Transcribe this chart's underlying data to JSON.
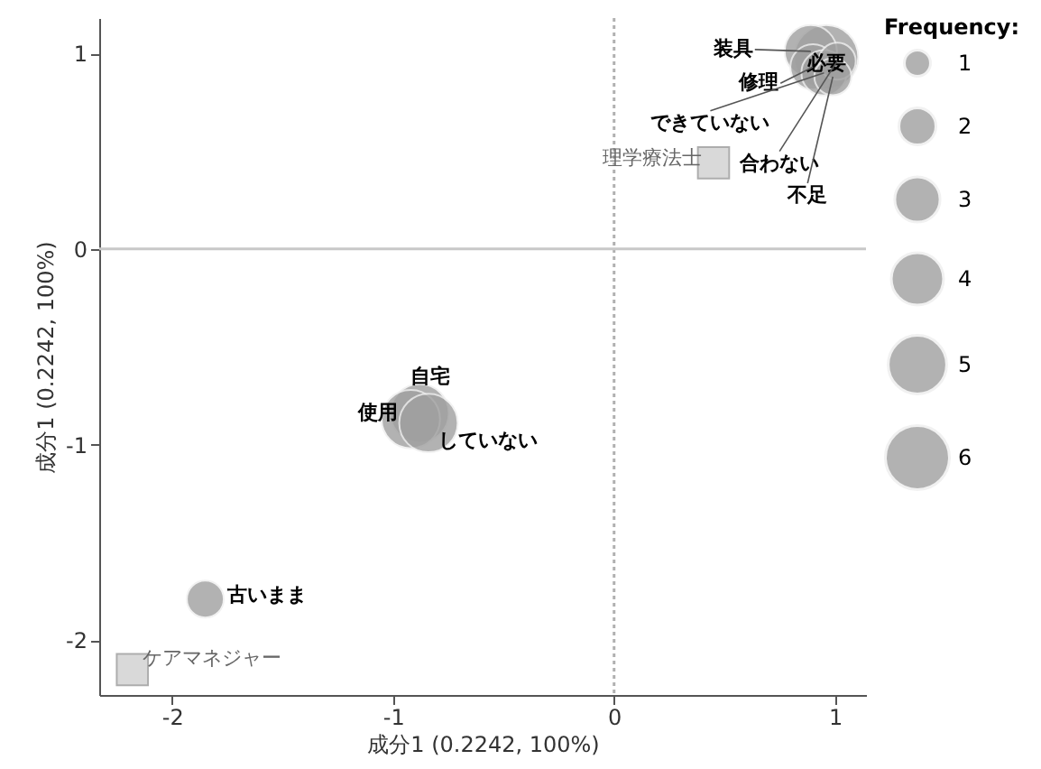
{
  "chart_data": {
    "type": "bubble",
    "xlabel": "成分1 (0.2242, 100%)",
    "ylabel": "成分1 (0.2242, 100%)",
    "legend_title": "Frequency:",
    "xlim": [
      -2.33,
      1.14
    ],
    "ylim": [
      -2.28,
      1.18
    ],
    "xticks": [
      -2,
      -1,
      0,
      1
    ],
    "yticks": [
      -2,
      -1,
      0,
      1
    ],
    "grid": false,
    "size_legend": [
      1,
      2,
      3,
      4,
      5,
      6
    ],
    "series": [
      {
        "color": "#a0a0a0",
        "x": [
          0.96,
          0.89,
          0.9,
          0.95,
          1.01,
          0.99,
          -0.88,
          -0.92,
          -0.84,
          -1.85
        ],
        "values": [
          0.98,
          1.01,
          0.93,
          0.9,
          0.96,
          0.88,
          -0.84,
          -0.87,
          -0.89,
          -1.79
        ],
        "sizes": [
          6,
          4,
          3,
          3,
          2,
          2,
          5,
          5,
          5,
          2
        ]
      },
      {
        "type": "scatter",
        "marker": "square",
        "color": "#d0d0d0",
        "x": [
          0.45,
          -2.18
        ],
        "values": [
          0.44,
          -2.15
        ]
      }
    ],
    "ref_lines": [
      {
        "axis": "y",
        "value": 0,
        "color": "#c8c8c8",
        "line_style": "solid"
      },
      {
        "axis": "x",
        "value": 0,
        "color": "#b0b0b0",
        "line_style": "dotted"
      }
    ],
    "annotations": [
      {
        "text": "必要",
        "x": 0.96,
        "y": 0.98
      },
      {
        "text": "装具",
        "x": 0.89,
        "y": 1.01
      },
      {
        "text": "修理",
        "x": 0.9,
        "y": 0.93
      },
      {
        "text": "できていない",
        "x": 0.95,
        "y": 0.9
      },
      {
        "text": "合わない",
        "x": 1.01,
        "y": 0.96
      },
      {
        "text": "不足",
        "x": 0.99,
        "y": 0.88
      },
      {
        "text": "自宅",
        "x": -0.88,
        "y": -0.84
      },
      {
        "text": "使用",
        "x": -0.92,
        "y": -0.87
      },
      {
        "text": "していない",
        "x": -0.84,
        "y": -0.89
      },
      {
        "text": "古いまま",
        "x": -1.85,
        "y": -1.79
      },
      {
        "text": "理学療法士",
        "x": 0.45,
        "y": 0.44
      },
      {
        "text": "ケアマネジャー",
        "x": -2.18,
        "y": -2.15
      }
    ]
  }
}
